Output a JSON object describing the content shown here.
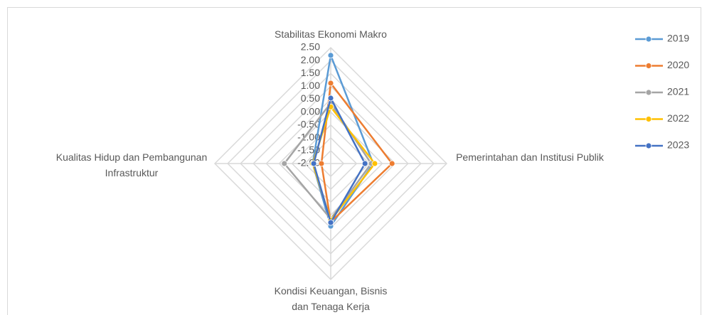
{
  "chart_data": {
    "type": "radar",
    "categories": [
      "Stabilitas Ekonomi Makro",
      "Pemerintahan dan Institusi Publik",
      "Kondisi Keuangan, Bisnis dan Tenaga Kerja",
      "Kualitas Hidup dan Pembangunan Infrastruktur"
    ],
    "series": [
      {
        "name": "2019",
        "color": "#5b9bd5",
        "values": [
          2.2,
          -0.35,
          0.43,
          -1.3
        ]
      },
      {
        "name": "2020",
        "color": "#ed7d31",
        "values": [
          1.12,
          0.38,
          0.27,
          -1.64
        ]
      },
      {
        "name": "2021",
        "color": "#a5a5a5",
        "values": [
          0.35,
          -0.43,
          0.15,
          -0.2
        ]
      },
      {
        "name": "2022",
        "color": "#ffc000",
        "values": [
          0.2,
          -0.29,
          0.2,
          -1.3
        ]
      },
      {
        "name": "2023",
        "color": "#4472c4",
        "values": [
          0.54,
          -0.67,
          0.29,
          -1.34
        ]
      }
    ],
    "ylim": [
      -2,
      2.5
    ],
    "yticks": [
      {
        "value": 2.5,
        "label": "2.50"
      },
      {
        "value": 2,
        "label": "2.00"
      },
      {
        "value": 1.5,
        "label": "1.50"
      },
      {
        "value": 1,
        "label": "1.00"
      },
      {
        "value": 0.5,
        "label": "0.50"
      },
      {
        "value": 0,
        "label": "0.00"
      },
      {
        "value": -0.5,
        "label": "-0.50"
      },
      {
        "value": -1,
        "label": "-1.00"
      },
      {
        "value": -1.5,
        "label": "-1.50"
      },
      {
        "value": -2,
        "label": "-2.00"
      }
    ],
    "grid": true,
    "legend": "right"
  }
}
